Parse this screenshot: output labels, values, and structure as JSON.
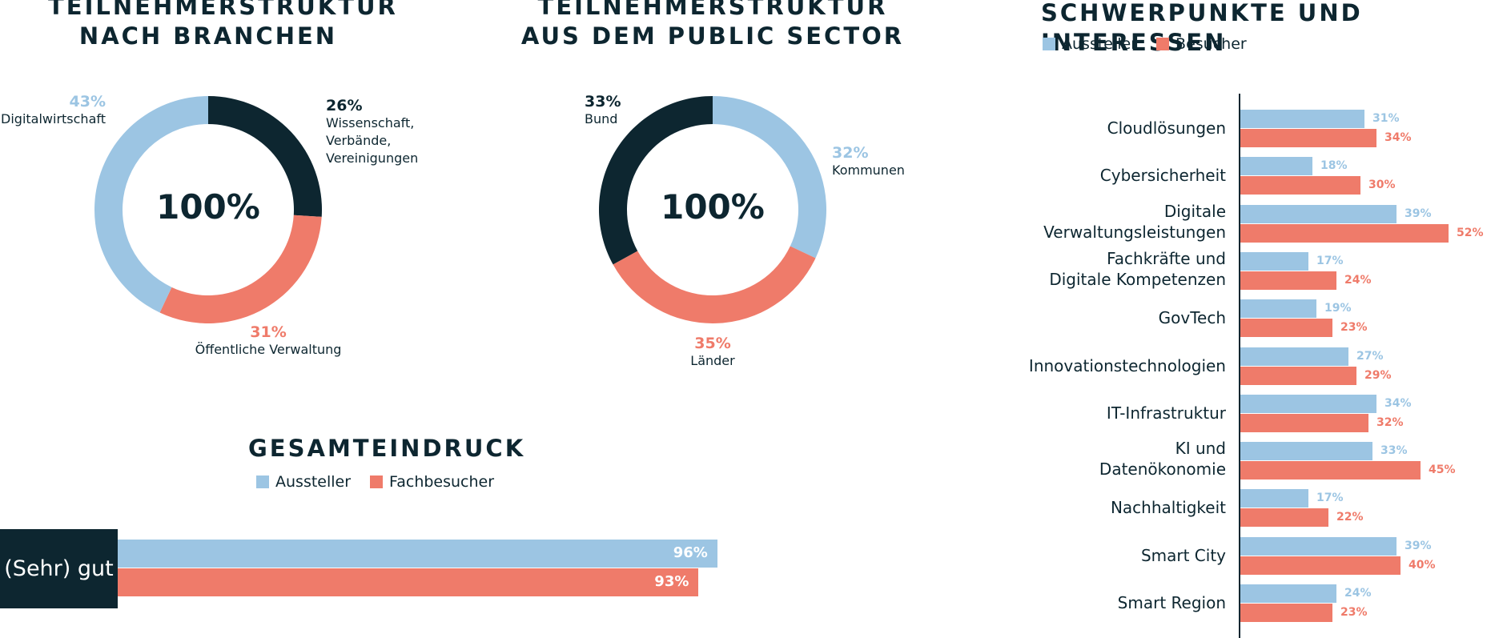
{
  "colors": {
    "navy": "#0d2630",
    "light_blue": "#9cc5e3",
    "coral": "#ef7b6a"
  },
  "branchen": {
    "title": "TEILNEHMERSTRUKTUR\nNACH BRANCHEN",
    "center": "100%",
    "segments": [
      {
        "pct": "26%",
        "label": "Wissenschaft,\nVerbände,\nVereinigungen",
        "color": "#0d2630"
      },
      {
        "pct": "31%",
        "label": "Öffentliche Verwaltung",
        "color": "#ef7b6a"
      },
      {
        "pct": "43%",
        "label": "Digitalwirtschaft",
        "color": "#9cc5e3"
      }
    ]
  },
  "public_sector": {
    "title": "TEILNEHMERSTRUKTUR\nAUS DEM PUBLIC SECTOR",
    "center": "100%",
    "segments": [
      {
        "pct": "32%",
        "label": "Kommunen",
        "color": "#9cc5e3"
      },
      {
        "pct": "35%",
        "label": "Länder",
        "color": "#ef7b6a"
      },
      {
        "pct": "33%",
        "label": "Bund",
        "color": "#0d2630"
      }
    ]
  },
  "gesamteindruck": {
    "title": "GESAMTEINDRUCK",
    "legend": [
      "Aussteller",
      "Fachbesucher"
    ],
    "category": "(Sehr) gut",
    "bars": [
      "96%",
      "93%"
    ]
  },
  "schwerpunkte": {
    "title": "SCHWERPUNKTE UND INTERESSEN",
    "legend": [
      "Aussteller",
      "Besucher"
    ]
  },
  "chart_data": [
    {
      "type": "pie",
      "title": "TEILNEHMERSTRUKTUR NACH BRANCHEN",
      "categories": [
        "Wissenschaft, Verbände, Vereinigungen",
        "Öffentliche Verwaltung",
        "Digitalwirtschaft"
      ],
      "values": [
        26,
        31,
        43
      ]
    },
    {
      "type": "pie",
      "title": "TEILNEHMERSTRUKTUR AUS DEM PUBLIC SECTOR",
      "categories": [
        "Kommunen",
        "Länder",
        "Bund"
      ],
      "values": [
        32,
        35,
        33
      ]
    },
    {
      "type": "bar",
      "title": "GESAMTEINDRUCK",
      "categories": [
        "(Sehr) gut"
      ],
      "series": [
        {
          "name": "Aussteller",
          "values": [
            96
          ]
        },
        {
          "name": "Fachbesucher",
          "values": [
            93
          ]
        }
      ]
    },
    {
      "type": "bar",
      "title": "SCHWERPUNKTE UND INTERESSEN",
      "categories": [
        "Cloudlösungen",
        "Cybersicherheit",
        "Digitale\nVerwaltungsleistungen",
        "Fachkräfte und\nDigitale Kompetenzen",
        "GovTech",
        "Innovationstechnologien",
        "IT-Infrastruktur",
        "KI und\nDatenökonomie",
        "Nachhaltigkeit",
        "Smart City",
        "Smart Region"
      ],
      "series": [
        {
          "name": "Aussteller",
          "values": [
            31,
            18,
            39,
            17,
            19,
            27,
            34,
            33,
            17,
            39,
            24
          ]
        },
        {
          "name": "Besucher",
          "values": [
            34,
            30,
            52,
            24,
            23,
            29,
            32,
            45,
            22,
            40,
            23
          ]
        }
      ]
    }
  ]
}
